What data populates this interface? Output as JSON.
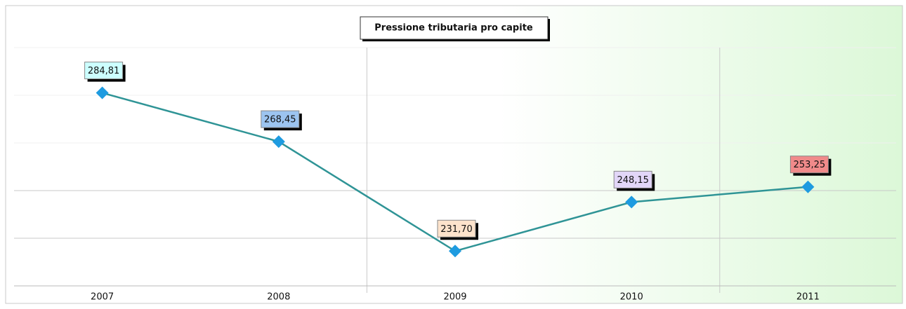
{
  "chart_data": {
    "type": "line",
    "title": "Pressione tributaria pro capite",
    "categories": [
      "2007",
      "2008",
      "2009",
      "2010",
      "2011"
    ],
    "series": [
      {
        "name": "Pressione tributaria pro capite",
        "color": "#2f9496",
        "marker_color": "#1e9be0",
        "values": [
          284.81,
          268.45,
          231.7,
          248.15,
          253.25
        ],
        "value_labels": [
          "284,81",
          "268,45",
          "231,70",
          "248,15",
          "253,25"
        ],
        "label_colors": [
          "#ccffff",
          "#9cc4f0",
          "#fde3cc",
          "#e2d6f8",
          "#f08a8a"
        ]
      }
    ],
    "ylim": [
      220,
      300
    ],
    "yticks": [
      220,
      236,
      252,
      268,
      284,
      300
    ],
    "grid": true
  }
}
